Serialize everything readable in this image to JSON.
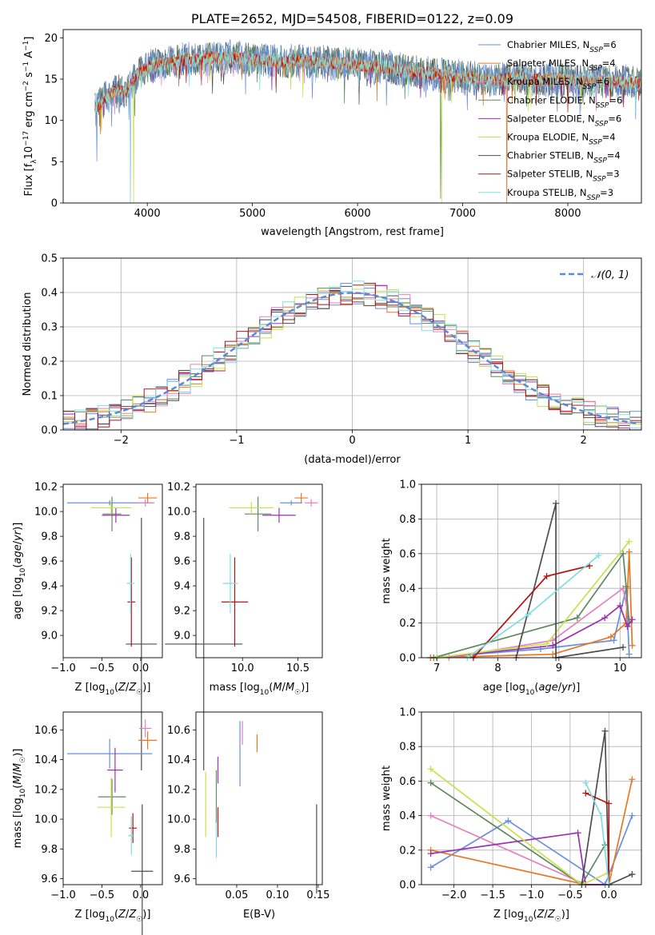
{
  "palette": [
    "#6a8fdc",
    "#e87722",
    "#e77fbf",
    "#5d8a5f",
    "#9b33b0",
    "#c8e04a",
    "#4d4d4d",
    "#b01515",
    "#7fdde0"
  ],
  "chart_data": [
    {
      "type": "line",
      "id": "spectrum",
      "title": "PLATE=2652, MJD=54508, FIBERID=0122, z=0.09",
      "xlabel": "wavelength [Angstrom, rest frame]",
      "ylabel": "Flux [f_λ10^-17 erg cm^-2 s^-1 A^-1]",
      "xlim": [
        3200,
        8700
      ],
      "ylim": [
        0,
        21
      ],
      "xticks": [
        4000,
        5000,
        6000,
        7000,
        8000
      ],
      "yticks": [
        0,
        5,
        10,
        15,
        20
      ],
      "grid": false,
      "legend_position": "right",
      "series": [
        {
          "name": "Chabrier MILES, N_SSP=6"
        },
        {
          "name": "Salpeter MILES, N_SSP=4"
        },
        {
          "name": "Kroupa MILES, N_SSP=6"
        },
        {
          "name": "Chabrier ELODIE, N_SSP=6"
        },
        {
          "name": "Salpeter ELODIE, N_SSP=6"
        },
        {
          "name": "Kroupa ELODIE, N_SSP=4"
        },
        {
          "name": "Chabrier STELIB, N_SSP=4"
        },
        {
          "name": "Salpeter STELIB, N_SSP=3"
        },
        {
          "name": "Kroupa STELIB, N_SSP=3"
        }
      ],
      "data_points": {
        "wavelength": [
          3520,
          3600,
          3700,
          3800,
          3900,
          4000,
          4100,
          4300,
          4500,
          4700,
          4900,
          5100,
          5300,
          5500,
          5700,
          5900,
          6100,
          6300,
          6500,
          6700,
          6900,
          7100,
          7300,
          7500,
          7700,
          7900,
          8100,
          8300,
          8600
        ],
        "flux": [
          11.5,
          12.8,
          13.6,
          13.5,
          15.5,
          16.4,
          16.8,
          17.2,
          17.5,
          17.6,
          17.5,
          17.3,
          17.1,
          17.2,
          17.0,
          16.9,
          16.6,
          16.3,
          16.0,
          15.6,
          15.3,
          15.2,
          14.8,
          15.2,
          14.9,
          15.0,
          14.8,
          14.9,
          14.6
        ]
      }
    },
    {
      "type": "histogram",
      "id": "residuals",
      "xlabel": "(data-model)/error",
      "ylabel": "Normed distribution",
      "xlim": [
        -2.5,
        2.5
      ],
      "ylim": [
        0,
        0.5
      ],
      "xticks": [
        -2,
        -1,
        0,
        1,
        2
      ],
      "yticks": [
        0.0,
        0.1,
        0.2,
        0.3,
        0.4,
        0.5
      ],
      "grid": true,
      "legend": [
        "𝒩(0, 1)"
      ],
      "legend_position": "top-right",
      "bin_width": 0.1
    },
    {
      "type": "scatter",
      "id": "age_vs_Z",
      "xlabel": "Z [log10(Z/Z☉)]",
      "ylabel": "age [log10(age/yr)]",
      "xlim": [
        -1.0,
        0.28
      ],
      "ylim": [
        8.82,
        10.22
      ],
      "xticks": [
        -1.0,
        -0.5,
        0.0
      ],
      "yticks": [
        9.0,
        9.2,
        9.4,
        9.6,
        9.8,
        10.0,
        10.2
      ],
      "grid": false,
      "points": [
        {
          "x": -0.4,
          "xerr": 0.55,
          "y": 10.07,
          "yerr": 0.02
        },
        {
          "x": 0.09,
          "xerr": 0.12,
          "y": 10.11,
          "yerr": 0.04
        },
        {
          "x": 0.06,
          "xerr": 0.12,
          "y": 10.07,
          "yerr": 0.03
        },
        {
          "x": -0.37,
          "xerr": 0.12,
          "y": 9.98,
          "yerr": 0.14
        },
        {
          "x": -0.32,
          "xerr": 0.18,
          "y": 9.97,
          "yerr": 0.06
        },
        {
          "x": -0.38,
          "xerr": 0.26,
          "y": 10.03,
          "yerr": 0.05
        },
        {
          "x": 0.01,
          "xerr": 0.2,
          "y": 8.93,
          "yerr": 1.02
        },
        {
          "x": -0.12,
          "xerr": 0.05,
          "y": 9.27,
          "yerr": 0.36
        },
        {
          "x": -0.13,
          "xerr": 0.05,
          "y": 9.42,
          "yerr": 0.24
        }
      ]
    },
    {
      "type": "scatter",
      "id": "age_vs_mass",
      "xlabel": "mass [log10(M/M☉)]",
      "ylabel": "",
      "xlim": [
        9.58,
        10.72
      ],
      "ylim": [
        8.82,
        10.22
      ],
      "xticks": [
        10.0,
        10.5
      ],
      "yticks": [
        9.0,
        9.2,
        9.4,
        9.6,
        9.8,
        10.0,
        10.2
      ],
      "grid": false,
      "points": [
        {
          "x": 10.44,
          "xerr": 0.1,
          "y": 10.07,
          "yerr": 0.02
        },
        {
          "x": 10.53,
          "xerr": 0.06,
          "y": 10.11,
          "yerr": 0.04
        },
        {
          "x": 10.62,
          "xerr": 0.06,
          "y": 10.07,
          "yerr": 0.03
        },
        {
          "x": 10.14,
          "xerr": 0.12,
          "y": 9.98,
          "yerr": 0.14
        },
        {
          "x": 10.33,
          "xerr": 0.15,
          "y": 9.97,
          "yerr": 0.06
        },
        {
          "x": 10.08,
          "xerr": 0.2,
          "y": 10.03,
          "yerr": 0.05
        },
        {
          "x": 9.65,
          "xerr": 0.35,
          "y": 8.93,
          "yerr": 1.02
        },
        {
          "x": 9.93,
          "xerr": 0.12,
          "y": 9.27,
          "yerr": 0.36
        },
        {
          "x": 9.89,
          "xerr": 0.07,
          "y": 9.42,
          "yerr": 0.24
        }
      ]
    },
    {
      "type": "line",
      "id": "weight_vs_age",
      "xlabel": "age [log10(age/yr)]",
      "ylabel": "mass weight",
      "xlim": [
        6.75,
        10.35
      ],
      "ylim": [
        0,
        1
      ],
      "xticks": [
        7,
        8,
        9,
        10
      ],
      "yticks": [
        0.0,
        0.2,
        0.4,
        0.6,
        0.8,
        1.0
      ],
      "grid": true,
      "series": [
        {
          "x": [
            6.9,
            8.7,
            9.9,
            10.1,
            10.15
          ],
          "y": [
            0.0,
            0.05,
            0.1,
            0.4,
            0.02
          ]
        },
        {
          "x": [
            6.9,
            8.9,
            9.85,
            10.1,
            10.15,
            10.2
          ],
          "y": [
            0.0,
            0.02,
            0.12,
            0.2,
            0.61,
            0.07
          ]
        },
        {
          "x": [
            7.2,
            8.9,
            10.05,
            10.15
          ],
          "y": [
            0.0,
            0.1,
            0.4,
            0.22
          ]
        },
        {
          "x": [
            6.95,
            9.3,
            10.05,
            10.1,
            10.15
          ],
          "y": [
            0.0,
            0.23,
            0.6,
            0.41,
            0.2
          ]
        },
        {
          "x": [
            7.0,
            8.9,
            9.75,
            10.0,
            10.12,
            10.2
          ],
          "y": [
            0.0,
            0.07,
            0.23,
            0.3,
            0.18,
            0.22
          ]
        },
        {
          "x": [
            7.0,
            8.8,
            10.15
          ],
          "y": [
            0.0,
            0.08,
            0.67
          ]
        },
        {
          "x": [
            8.3,
            8.95,
            8.95,
            10.05
          ],
          "y": [
            0.0,
            0.89,
            0.0,
            0.06
          ]
        },
        {
          "x": [
            7.6,
            8.8,
            9.5
          ],
          "y": [
            0.0,
            0.47,
            0.53
          ]
        },
        {
          "x": [
            7.5,
            8.5,
            9.65
          ],
          "y": [
            0.0,
            0.25,
            0.59
          ]
        }
      ]
    },
    {
      "type": "scatter",
      "id": "mass_vs_Z",
      "xlabel": "Z [log10(Z/Z☉)]",
      "ylabel": "mass [log10(M/M☉)]",
      "xlim": [
        -1.0,
        0.28
      ],
      "ylim": [
        9.56,
        10.72
      ],
      "xticks": [
        -1.0,
        -0.5,
        0.0
      ],
      "yticks": [
        9.6,
        9.8,
        10.0,
        10.2,
        10.4,
        10.6
      ],
      "grid": false,
      "points": [
        {
          "x": -0.4,
          "xerr": 0.55,
          "y": 10.44,
          "yerr": 0.1
        },
        {
          "x": 0.09,
          "xerr": 0.12,
          "y": 10.53,
          "yerr": 0.06
        },
        {
          "x": 0.06,
          "xerr": 0.08,
          "y": 10.61,
          "yerr": 0.06
        },
        {
          "x": -0.37,
          "xerr": 0.18,
          "y": 10.15,
          "yerr": 0.12
        },
        {
          "x": -0.33,
          "xerr": 0.1,
          "y": 10.33,
          "yerr": 0.15
        },
        {
          "x": -0.38,
          "xerr": 0.18,
          "y": 10.08,
          "yerr": 0.2
        },
        {
          "x": 0.02,
          "xerr": 0.14,
          "y": 9.65,
          "yerr": 0.45
        },
        {
          "x": -0.1,
          "xerr": 0.05,
          "y": 9.94,
          "yerr": 0.1
        },
        {
          "x": -0.12,
          "xerr": 0.04,
          "y": 9.89,
          "yerr": 0.13
        }
      ]
    },
    {
      "type": "scatter",
      "id": "mass_vs_ebv",
      "xlabel": "E(B-V)",
      "ylabel": "",
      "xlim": [
        0.0,
        0.155
      ],
      "ylim": [
        9.56,
        10.72
      ],
      "xticks": [
        0.05,
        0.1,
        0.15
      ],
      "yticks": [
        9.6,
        9.8,
        10.0,
        10.2,
        10.4,
        10.6
      ],
      "grid": false,
      "points": [
        {
          "x": 0.054,
          "y": 10.44,
          "yerr": 0.22
        },
        {
          "x": 0.075,
          "y": 10.51,
          "yerr": 0.06
        },
        {
          "x": 0.057,
          "y": 10.58,
          "yerr": 0.08
        },
        {
          "x": 0.025,
          "y": 10.15,
          "yerr": 0.18
        },
        {
          "x": 0.027,
          "y": 10.33,
          "yerr": 0.09
        },
        {
          "x": 0.012,
          "y": 10.1,
          "yerr": 0.22
        },
        {
          "x": 0.148,
          "y": 9.8,
          "yerr": 0.3
        },
        {
          "x": 0.027,
          "y": 9.98,
          "yerr": 0.1
        },
        {
          "x": 0.025,
          "y": 9.86,
          "yerr": 0.12
        }
      ]
    },
    {
      "type": "line",
      "id": "weight_vs_Z",
      "xlabel": "Z [log10(Z/Z☉)]",
      "ylabel": "mass weight",
      "xlim": [
        -2.42,
        0.42
      ],
      "ylim": [
        0,
        1
      ],
      "xticks": [
        -2.0,
        -1.5,
        -1.0,
        -0.5,
        0.0
      ],
      "yticks": [
        0.0,
        0.2,
        0.4,
        0.6,
        0.8,
        1.0
      ],
      "grid": true,
      "series": [
        {
          "x": [
            -2.3,
            -1.3,
            -0.05,
            0.3
          ],
          "y": [
            0.1,
            0.37,
            0.0,
            0.4
          ]
        },
        {
          "x": [
            -2.3,
            -0.3,
            0.0,
            0.3
          ],
          "y": [
            0.2,
            0.0,
            0.0,
            0.61
          ]
        },
        {
          "x": [
            -2.3,
            -0.3,
            0.0
          ],
          "y": [
            0.4,
            0.0,
            0.0
          ]
        },
        {
          "x": [
            -2.3,
            -0.35,
            -0.05
          ],
          "y": [
            0.59,
            0.0,
            0.23
          ]
        },
        {
          "x": [
            -2.3,
            -0.4,
            -0.3,
            0.0
          ],
          "y": [
            0.18,
            0.3,
            0.0,
            0.0
          ]
        },
        {
          "x": [
            -2.3,
            -0.35,
            0.0
          ],
          "y": [
            0.67,
            0.0,
            0.07
          ]
        },
        {
          "x": [
            -0.35,
            -0.05,
            0.0,
            0.3
          ],
          "y": [
            0.0,
            0.89,
            0.0,
            0.06
          ]
        },
        {
          "x": [
            -0.3,
            0.0,
            0.0
          ],
          "y": [
            0.53,
            0.47,
            0.0
          ]
        },
        {
          "x": [
            -0.3,
            -0.1,
            0.0
          ],
          "y": [
            0.59,
            0.4,
            0.0
          ]
        }
      ]
    }
  ]
}
